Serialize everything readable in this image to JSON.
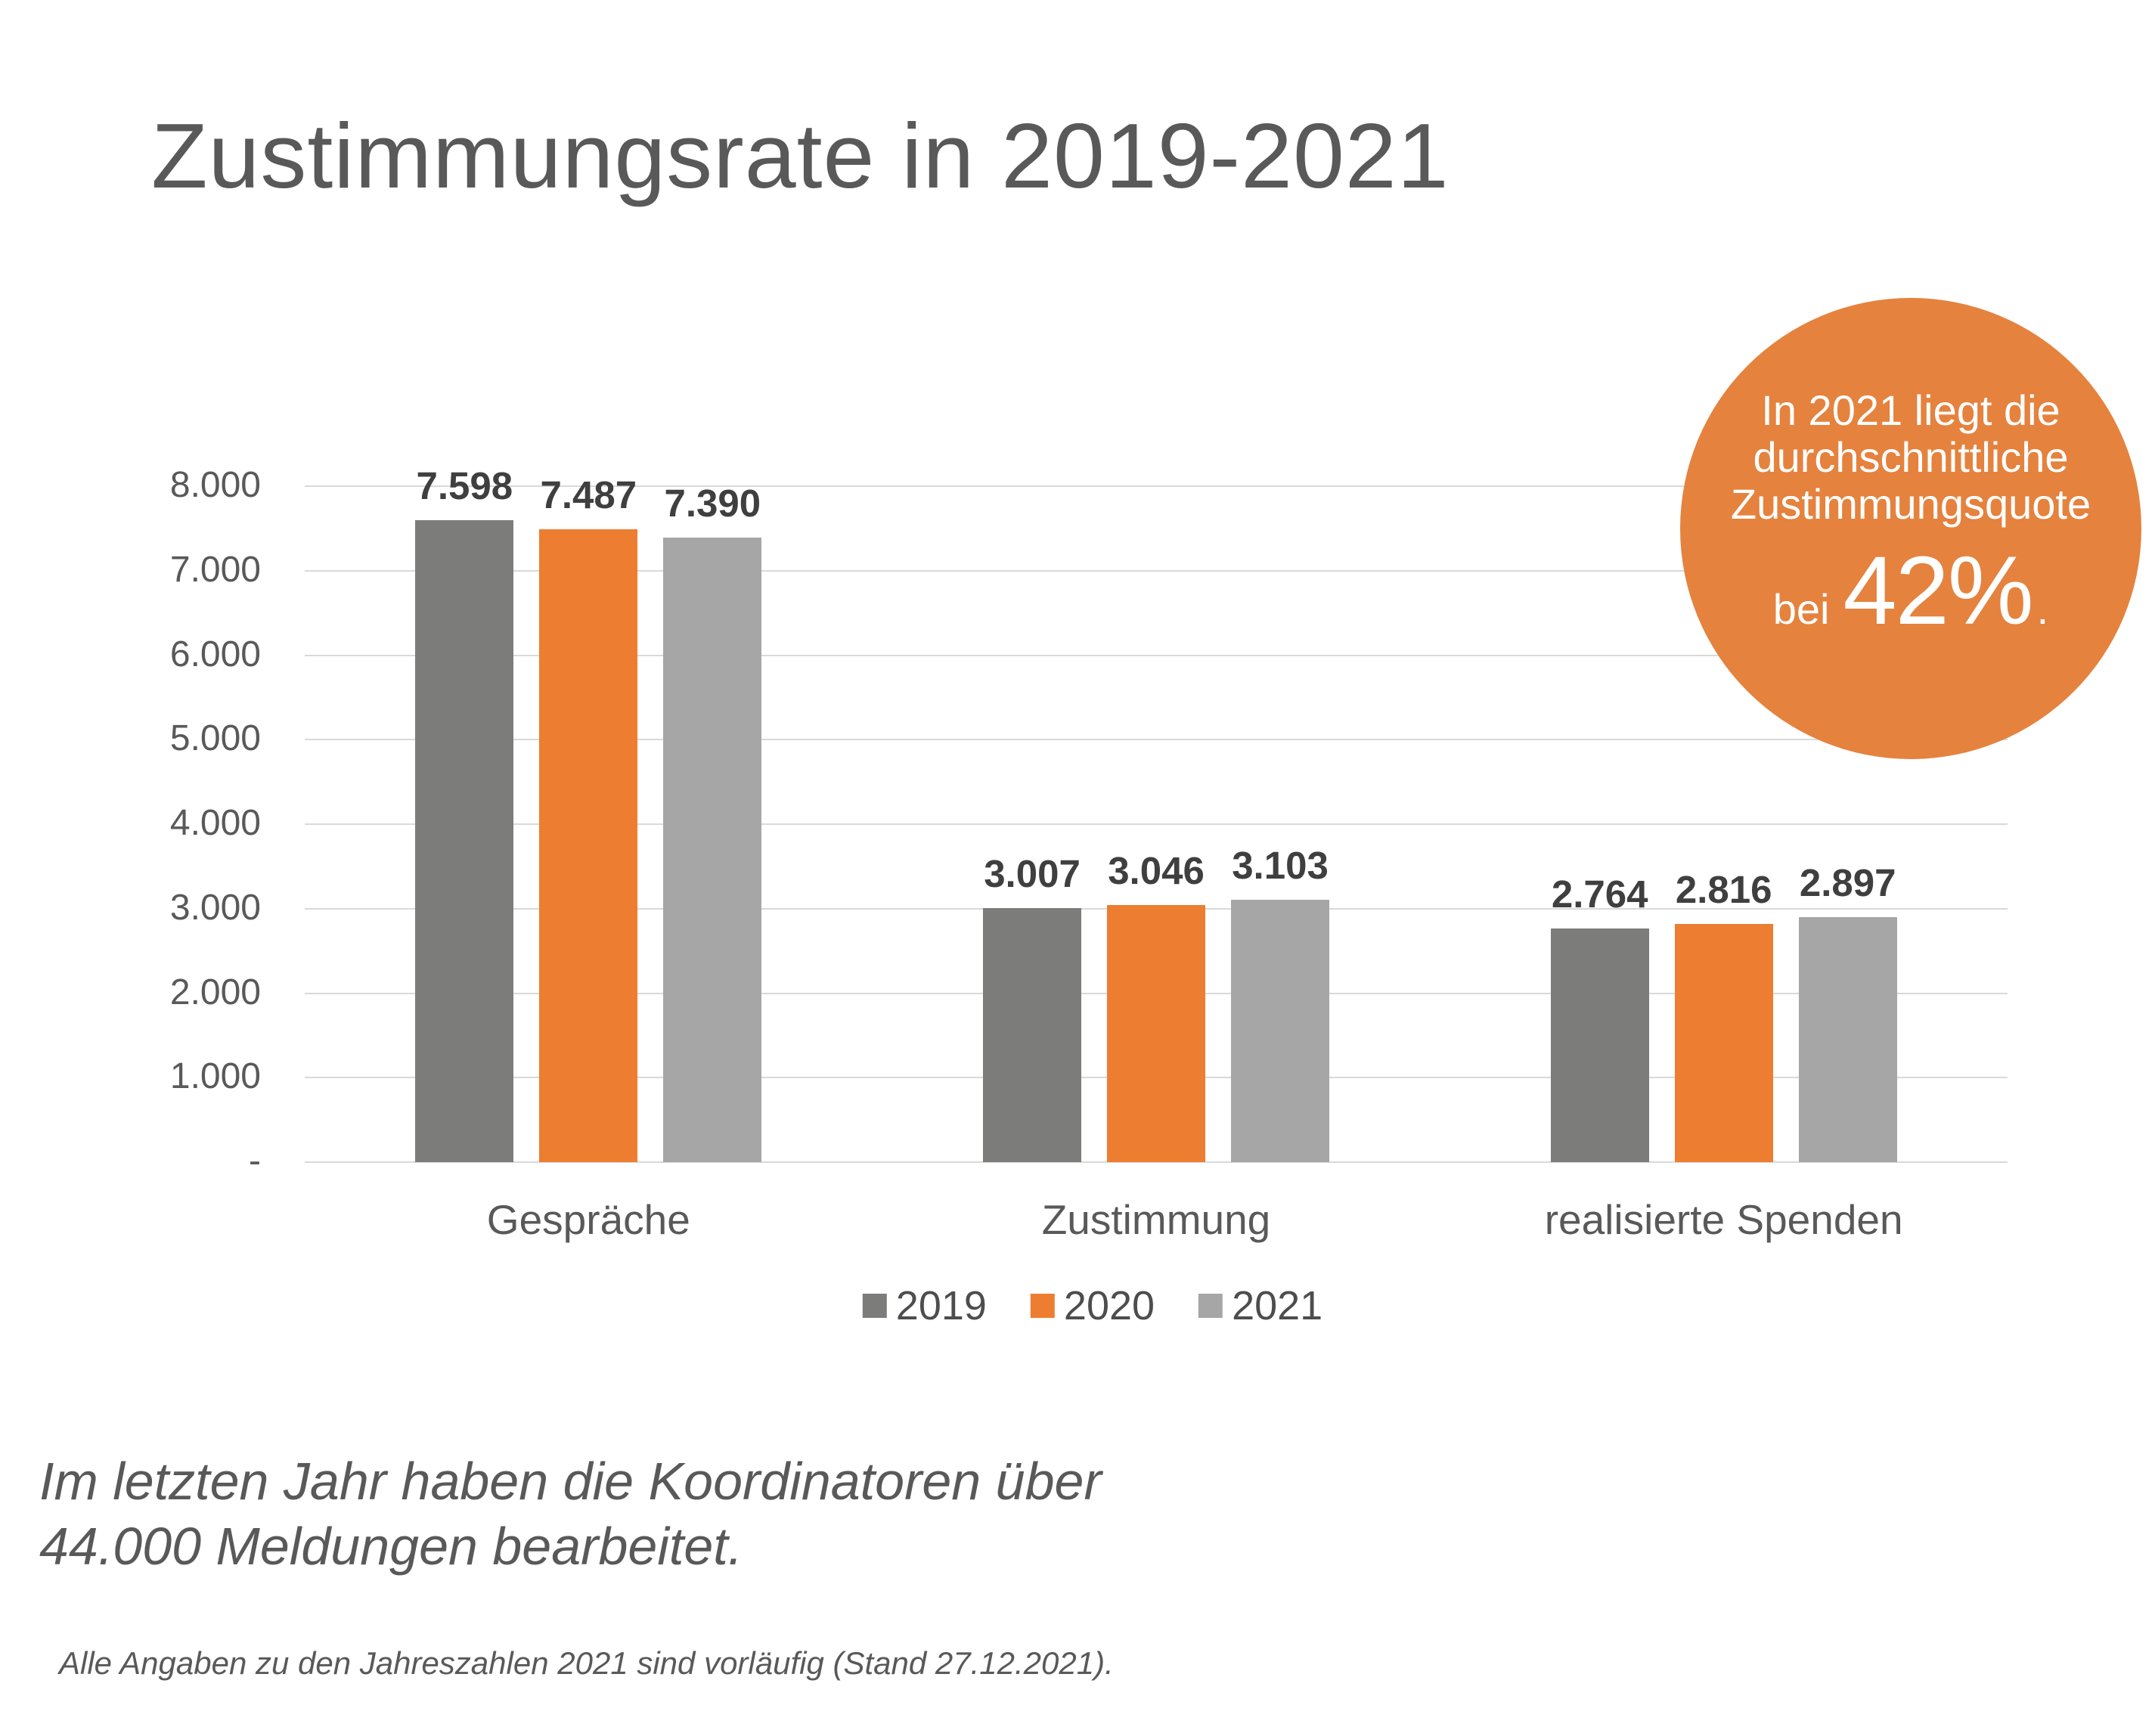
{
  "slide_title": "Zustimmungsrate in 2019-2021",
  "chart_data": {
    "type": "bar",
    "title": "Zustimmungsrate in 2019-2021",
    "categories": [
      "Gespräche",
      "Zustimmung",
      "realisierte Spenden"
    ],
    "series": [
      {
        "name": "2019",
        "color": "#7C7C7A",
        "values": [
          7598,
          3007,
          2764
        ],
        "labels": [
          "7.598",
          "3.007",
          "2.764"
        ]
      },
      {
        "name": "2020",
        "color": "#ED7D31",
        "values": [
          7487,
          3046,
          2816
        ],
        "labels": [
          "7.487",
          "3.046",
          "2.816"
        ]
      },
      {
        "name": "2021",
        "color": "#A6A6A6",
        "values": [
          7390,
          3103,
          2897
        ],
        "labels": [
          "7.390",
          "3.103",
          "2.897"
        ]
      }
    ],
    "ylim": [
      0,
      8000
    ],
    "yticks": [
      {
        "value": 8000,
        "label": "8.000"
      },
      {
        "value": 7000,
        "label": "7.000"
      },
      {
        "value": 6000,
        "label": "6.000"
      },
      {
        "value": 5000,
        "label": "5.000"
      },
      {
        "value": 4000,
        "label": "4.000"
      },
      {
        "value": 3000,
        "label": "3.000"
      },
      {
        "value": 2000,
        "label": "2.000"
      },
      {
        "value": 1000,
        "label": "1.000"
      },
      {
        "value": 0,
        "label": "-"
      }
    ],
    "grid": "horizontal",
    "legend_position": "bottom-center",
    "gridline_color": "#D9D9D9",
    "axis_text_color": "#595959",
    "data_label_color": "#3F3F3F"
  },
  "callout": {
    "bg_color": "#E5823E",
    "text_color": "#FFFFFF",
    "lines": [
      "In 2021 liegt die",
      "durchschnittliche",
      "Zustimmungsquote"
    ],
    "emphasis_prefix": "bei",
    "emphasis_value": "42%",
    "emphasis_suffix": "."
  },
  "note_lines": [
    "Im letzten Jahr haben die Koordinatoren über",
    "44.000 Meldungen bearbeitet."
  ],
  "footnote": "Alle Angaben zu den Jahreszahlen 2021 sind vorläufig (Stand 27.12.2021)."
}
